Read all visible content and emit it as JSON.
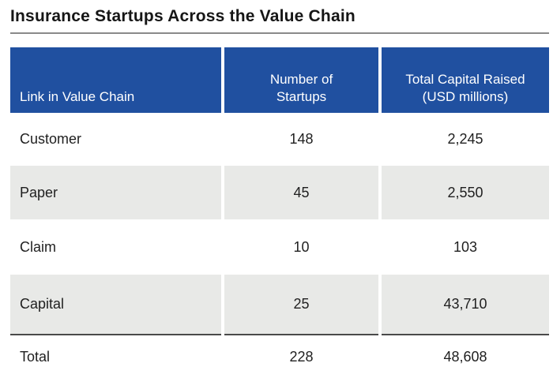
{
  "page": {
    "title": "Insurance Startups Across the Value Chain"
  },
  "table": {
    "headers": {
      "link": "Link in Value Chain",
      "startups": "Number of\nStartups",
      "capital": "Total Capital Raised\n(USD millions)"
    },
    "rows": [
      {
        "link": "Customer",
        "startups": "148",
        "capital": "2,245"
      },
      {
        "link": "Paper",
        "startups": "45",
        "capital": "2,550"
      },
      {
        "link": "Claim",
        "startups": "10",
        "capital": "103"
      },
      {
        "link": "Capital",
        "startups": "25",
        "capital": "43,710"
      }
    ],
    "total": {
      "link": "Total",
      "startups": "228",
      "capital": "48,608"
    }
  },
  "colors": {
    "header_bg": "#2050A0",
    "header_text": "#FFFFFF",
    "alt_row_bg": "#E8E9E7",
    "title_rule": "#8A8A8A",
    "total_rule": "#4A4A4A",
    "text": "#1F1F1F"
  },
  "chart_data": {
    "type": "table",
    "title": "Insurance Startups Across the Value Chain",
    "columns": [
      "Link in Value Chain",
      "Number of Startups",
      "Total Capital Raised (USD millions)"
    ],
    "rows": [
      [
        "Customer",
        148,
        2245
      ],
      [
        "Paper",
        45,
        2550
      ],
      [
        "Claim",
        10,
        103
      ],
      [
        "Capital",
        25,
        43710
      ]
    ],
    "total_row": [
      "Total",
      228,
      48608
    ]
  }
}
